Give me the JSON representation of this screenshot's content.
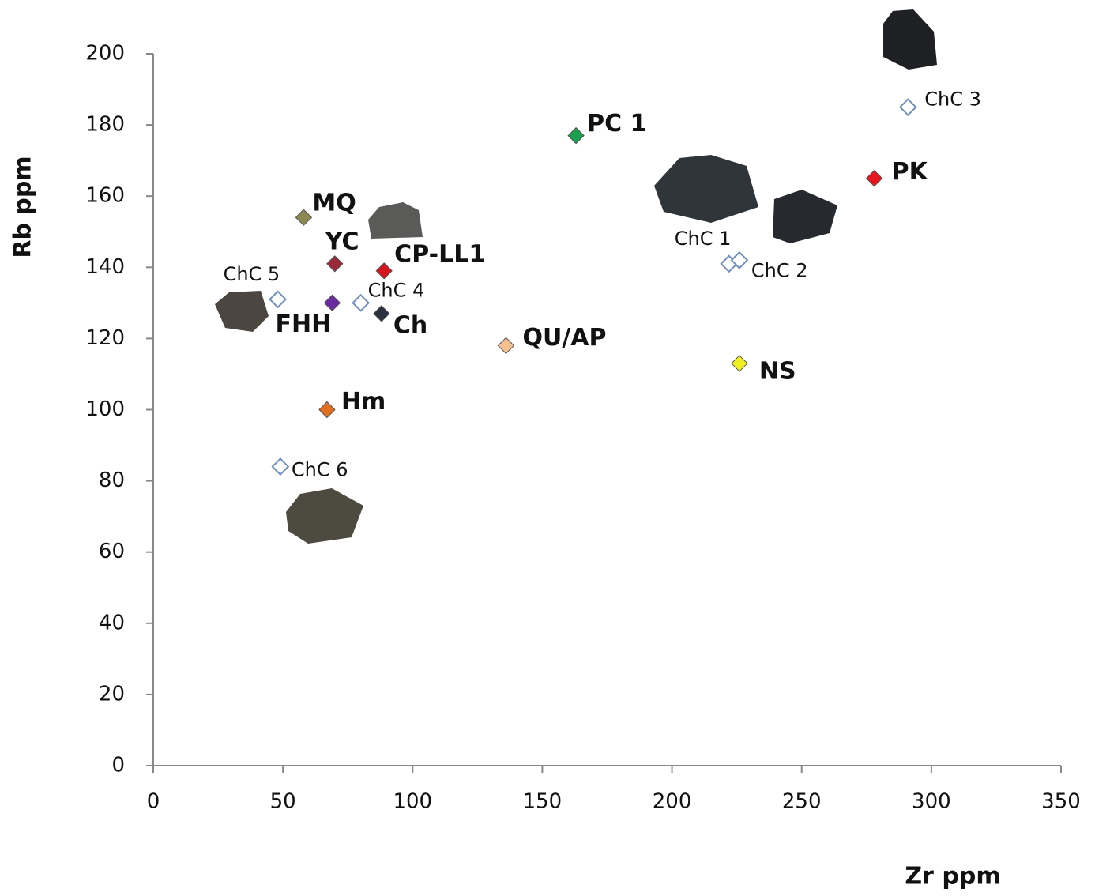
{
  "chart_data": {
    "type": "scatter",
    "x_label": "Zr ppm",
    "y_label": "Rb ppm",
    "xlim": [
      0,
      350
    ],
    "xticks": [
      0,
      50,
      100,
      150,
      200,
      250,
      300,
      350
    ],
    "ylim": [
      0,
      200
    ],
    "yticks": [
      0,
      20,
      40,
      60,
      80,
      100,
      120,
      140,
      160,
      180,
      200
    ],
    "grid": false,
    "series": [
      {
        "name": "ChC 3",
        "color": "#6f8fbf",
        "filled": false,
        "x": [
          291
        ],
        "values": [
          185
        ]
      },
      {
        "name": "PK",
        "color": "#e8141e",
        "filled": true,
        "x": [
          278
        ],
        "values": [
          165
        ]
      },
      {
        "name": "PC 1",
        "color": "#1aa050",
        "filled": true,
        "x": [
          163
        ],
        "values": [
          177
        ]
      },
      {
        "name": "ChC 1",
        "color": "#6f8fbf",
        "filled": false,
        "x": [
          222
        ],
        "values": [
          141
        ]
      },
      {
        "name": "ChC 2",
        "color": "#6f8fbf",
        "filled": false,
        "x": [
          226
        ],
        "values": [
          142
        ]
      },
      {
        "name": "NS",
        "color": "#f0f020",
        "filled": true,
        "x": [
          226
        ],
        "values": [
          113
        ]
      },
      {
        "name": "QU/AP",
        "color": "#f8c090",
        "filled": true,
        "x": [
          136
        ],
        "values": [
          118
        ]
      },
      {
        "name": "MQ",
        "color": "#8a8a50",
        "filled": true,
        "x": [
          58
        ],
        "values": [
          154
        ]
      },
      {
        "name": "YC",
        "color": "#9a2a3a",
        "filled": true,
        "x": [
          70
        ],
        "values": [
          141
        ]
      },
      {
        "name": "CP-LL1",
        "color": "#d4141e",
        "filled": true,
        "x": [
          89
        ],
        "values": [
          139
        ]
      },
      {
        "name": "ChC 5",
        "color": "#6f8fbf",
        "filled": false,
        "x": [
          48
        ],
        "values": [
          131
        ]
      },
      {
        "name": "FHH",
        "color": "#6a2aa0",
        "filled": true,
        "x": [
          69
        ],
        "values": [
          130
        ]
      },
      {
        "name": "ChC 4",
        "color": "#6f8fbf",
        "filled": false,
        "x": [
          80
        ],
        "values": [
          130
        ]
      },
      {
        "name": "Ch",
        "color": "#2a3040",
        "filled": true,
        "x": [
          88
        ],
        "values": [
          127
        ]
      },
      {
        "name": "Hm",
        "color": "#e07020",
        "filled": true,
        "x": [
          67
        ],
        "values": [
          100
        ]
      },
      {
        "name": "ChC 6",
        "color": "#6f8fbf",
        "filled": false,
        "x": [
          49
        ],
        "values": [
          84
        ]
      }
    ]
  }
}
